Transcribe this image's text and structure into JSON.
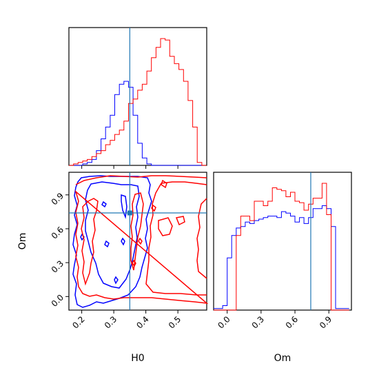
{
  "chart_data": {
    "type": "corner",
    "parameters": [
      "H0",
      "Om"
    ],
    "xlabel": "H0",
    "ylabel": "Om",
    "xlabel_om": "Om",
    "truth": {
      "H0": 0.35,
      "Om": 0.74
    },
    "colors": {
      "sample_a": "#0000ff",
      "sample_b": "#ff0000",
      "truth": "#1f77b4"
    },
    "h0_range": [
      0.16,
      0.59
    ],
    "om_range": [
      -0.12,
      1.1
    ],
    "h0_ticks": [
      0.2,
      0.3,
      0.4,
      0.5
    ],
    "h0_tick_labels": [
      "0.2",
      "0.3",
      "0.4",
      "0.5"
    ],
    "om_ticks": [
      0.0,
      0.3,
      0.6,
      0.9
    ],
    "om_tick_labels": [
      "0.0",
      "0.3",
      "0.6",
      "0.9"
    ],
    "hist_h0": {
      "bin_width": 0.0143,
      "start": 0.16,
      "blue": [
        0,
        0,
        0,
        1,
        2,
        4,
        10,
        18,
        26,
        34,
        48,
        55,
        57,
        53,
        34,
        15,
        5,
        1,
        0,
        0,
        0,
        0,
        0,
        0,
        0,
        0,
        0,
        0,
        0,
        0
      ],
      "red": [
        0,
        1,
        2,
        3,
        4,
        6,
        8,
        10,
        14,
        17,
        21,
        24,
        30,
        42,
        45,
        51,
        55,
        64,
        73,
        80,
        86,
        85,
        74,
        69,
        65,
        57,
        44,
        26,
        2,
        0
      ]
    },
    "hist_om": {
      "bin_width": 0.04,
      "start": -0.12,
      "blue": [
        1,
        1,
        3,
        35,
        50,
        55,
        56,
        59,
        58,
        60,
        61,
        62,
        63,
        63,
        62,
        66,
        65,
        63,
        59,
        62,
        58,
        62,
        68,
        68,
        70,
        68,
        56,
        1,
        1,
        1
      ],
      "red": [
        0,
        0,
        0,
        0,
        0,
        50,
        63,
        63,
        60,
        73,
        73,
        70,
        73,
        82,
        81,
        80,
        76,
        79,
        73,
        72,
        67,
        71,
        75,
        75,
        85,
        64,
        0,
        0,
        0,
        0
      ]
    }
  }
}
